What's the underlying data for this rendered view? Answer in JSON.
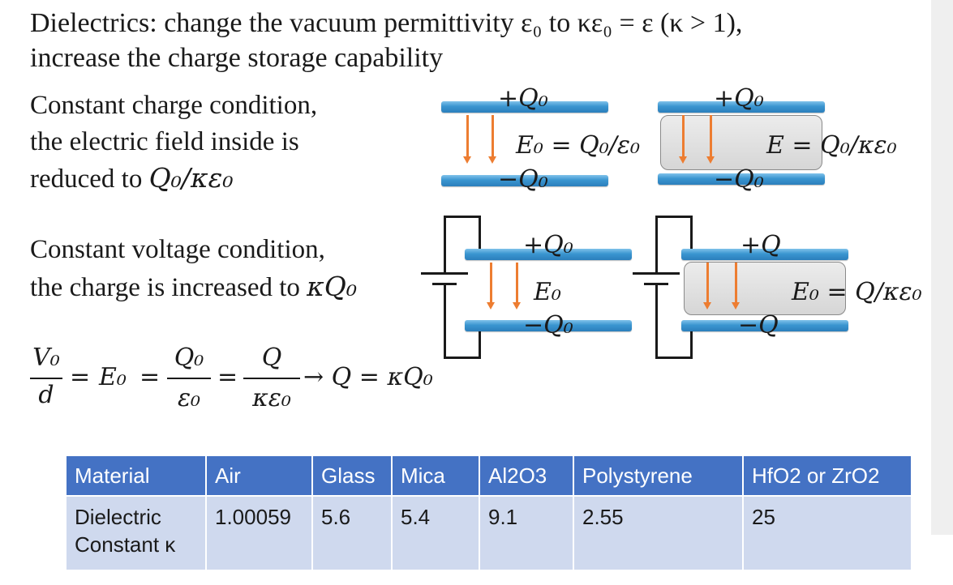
{
  "text": {
    "title_line1": "Dielectrics: change the vacuum permittivity ε₀ to κε₀ = ε (κ > 1),",
    "title_line2": "increase the charge storage capability",
    "cc_line1": "Constant charge condition,",
    "cc_line2": "the electric field inside is",
    "cc_line3_prefix": "reduced to ",
    "cc_line3_math": "Q₀/κε₀",
    "cv_line1": "Constant voltage condition,",
    "cv_line2_prefix": "the charge is increased to ",
    "cv_line2_math": "κQ₀"
  },
  "equation": {
    "v0": "V₀",
    "d": "d",
    "eq1": "=",
    "e0": "E₀",
    "eq2": "=",
    "q0": "Q₀",
    "eps0": "ε₀",
    "eq3": "=",
    "q": "Q",
    "kappa_eps0": "κε₀",
    "result": "→ Q = κQ₀"
  },
  "diagrams": {
    "d1_top": "+Q₀",
    "d1_field": "E₀ = Q₀/ε₀",
    "d1_bottom": "−Q₀",
    "d2_top": "+Q₀",
    "d2_field": "E = Q₀/κε₀",
    "d2_bottom": "−Q₀",
    "d3_top": "+Q₀",
    "d3_field": "E₀",
    "d3_bottom": "−Q₀",
    "d4_top": "+Q",
    "d4_field": "E₀ = Q/κε₀",
    "d4_bottom": "−Q"
  },
  "table": {
    "headers": [
      "Material",
      "Air",
      "Glass",
      "Mica",
      "Al2O3",
      "Polystyrene",
      "HfO2 or ZrO2"
    ],
    "row_label_line1": "Dielectric",
    "row_label_line2": "Constant κ",
    "values": [
      "1.00059",
      "5.6",
      "5.4",
      "9.1",
      "2.55",
      "25"
    ]
  },
  "colors": {
    "plate": "#3a95d0",
    "field_arrow": "#ed7d31",
    "header_bg": "#4472c4",
    "cell_bg": "#cfd9ee"
  }
}
